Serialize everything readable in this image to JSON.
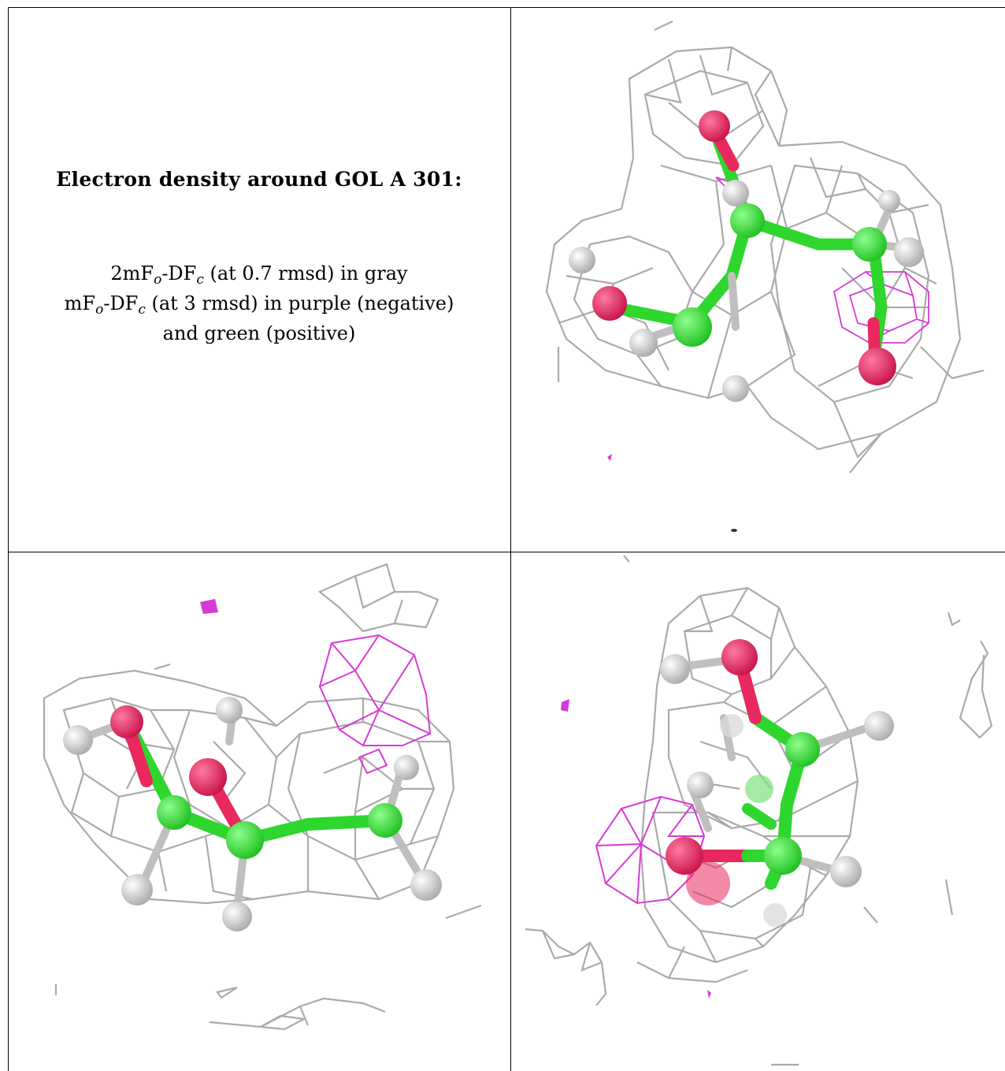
{
  "caption": {
    "title": "Electron density around GOL A 301:",
    "line1": {
      "main": "2mF",
      "sub_o": "o",
      "mid": "-DF",
      "sub_c": "c",
      "rest": " (at 0.7 rmsd) in gray"
    },
    "line2": {
      "main": "mF",
      "sub_o": "o",
      "mid": "-DF",
      "sub_c": "c",
      "rest": " (at 3 rmsd) in purple (negative)"
    },
    "line3": "and green (positive)"
  },
  "colors": {
    "mesh_gray": "#a8a8a8",
    "mesh_purple": "#d63ad6",
    "carbon_green": "#33e233",
    "oxygen_red": "#e8285e",
    "hydrogen_white": "#e6e6e6"
  },
  "panels": [
    "view-1",
    "view-2",
    "view-3"
  ]
}
